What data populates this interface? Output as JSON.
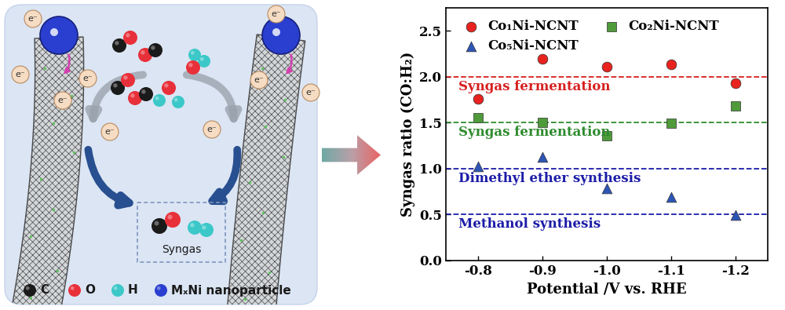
{
  "chart_data": {
    "type": "scatter",
    "x_label": "Potential /V vs. RHE",
    "y_label": "Syngas ratio (CO:H₂)",
    "x": [
      -0.8,
      -0.9,
      -1.0,
      -1.1,
      -1.2
    ],
    "xlim": [
      -0.75,
      -1.25
    ],
    "xticks": [
      -0.8,
      -0.9,
      -1.0,
      -1.1,
      -1.2
    ],
    "ylim": [
      0.0,
      2.75
    ],
    "yticks": [
      0.0,
      0.5,
      1.0,
      1.5,
      2.0,
      2.5
    ],
    "grid": false,
    "legend": "upper left",
    "series": [
      {
        "name": "Co₁Ni-NCNT",
        "color": "#e8231f",
        "marker": "circle",
        "values": [
          1.76,
          2.19,
          2.11,
          2.13,
          1.93
        ]
      },
      {
        "name": "Co₂Ni-NCNT",
        "color": "#4f9a3a",
        "marker": "square",
        "values": [
          1.55,
          1.5,
          1.36,
          1.49,
          1.68
        ]
      },
      {
        "name": "Co₅Ni-NCNT",
        "color": "#2d55b5",
        "marker": "triangle",
        "values": [
          1.02,
          1.13,
          0.78,
          0.69,
          0.49
        ]
      }
    ],
    "reference_lines": [
      {
        "value": 2.0,
        "label": "Syngas fermentation",
        "color": "#d62020"
      },
      {
        "value": 1.5,
        "label": "Syngas fermentation",
        "color": "#2e8b2e"
      },
      {
        "value": 1.0,
        "label": "Dimethyl ether synthesis",
        "color": "#1c1ca8"
      },
      {
        "value": 0.5,
        "label": "Methanol synthesis",
        "color": "#1c1ca8"
      }
    ]
  },
  "diagram": {
    "electron_label": "e⁻",
    "product_label": "Syngas",
    "legend": [
      {
        "label": "C",
        "color": "#1a1a1a"
      },
      {
        "label": "O",
        "color": "#e8303a"
      },
      {
        "label": "H",
        "color": "#3cc8c8"
      },
      {
        "label": "MₓNi nanoparticle",
        "color": "#2a3fcf"
      }
    ]
  }
}
